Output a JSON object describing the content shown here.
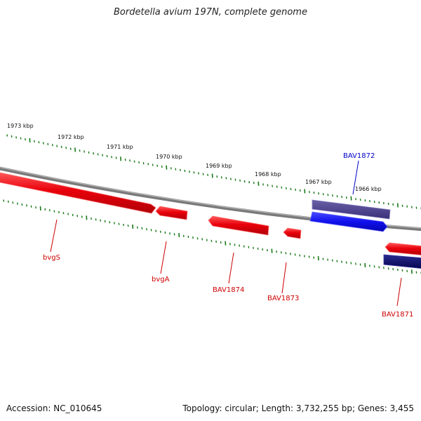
{
  "title": "Bordetella avium 197N, complete genome",
  "footer": {
    "accession": "Accession: NC_010645",
    "summary": "Topology: circular; Length: 3,732,255 bp; Genes: 3,455"
  },
  "colors": {
    "forward_gene": "#e8000b",
    "reverse_gene_selected": "#1010ee",
    "reverse_gene_dark": "#0a0a6a",
    "reverse_gene_outline": "#4b3f8a",
    "backbone": "#808080",
    "tick": "#1a7a1a",
    "forward_label": "#cc0000",
    "reverse_label": "#0000cc"
  },
  "scale_labels": [
    "1973 kbp",
    "1972 kbp",
    "1971 kbp",
    "1970 kbp",
    "1969 kbp",
    "1968 kbp",
    "1967 kbp",
    "1966 kbp"
  ],
  "genes": [
    {
      "name": "bvgS",
      "strand": "forward"
    },
    {
      "name": "bvgA",
      "strand": "forward"
    },
    {
      "name": "BAV1874",
      "strand": "forward"
    },
    {
      "name": "BAV1873",
      "strand": "forward"
    },
    {
      "name": "BAV1872",
      "strand": "reverse"
    },
    {
      "name": "BAV1871",
      "strand": "forward"
    }
  ]
}
